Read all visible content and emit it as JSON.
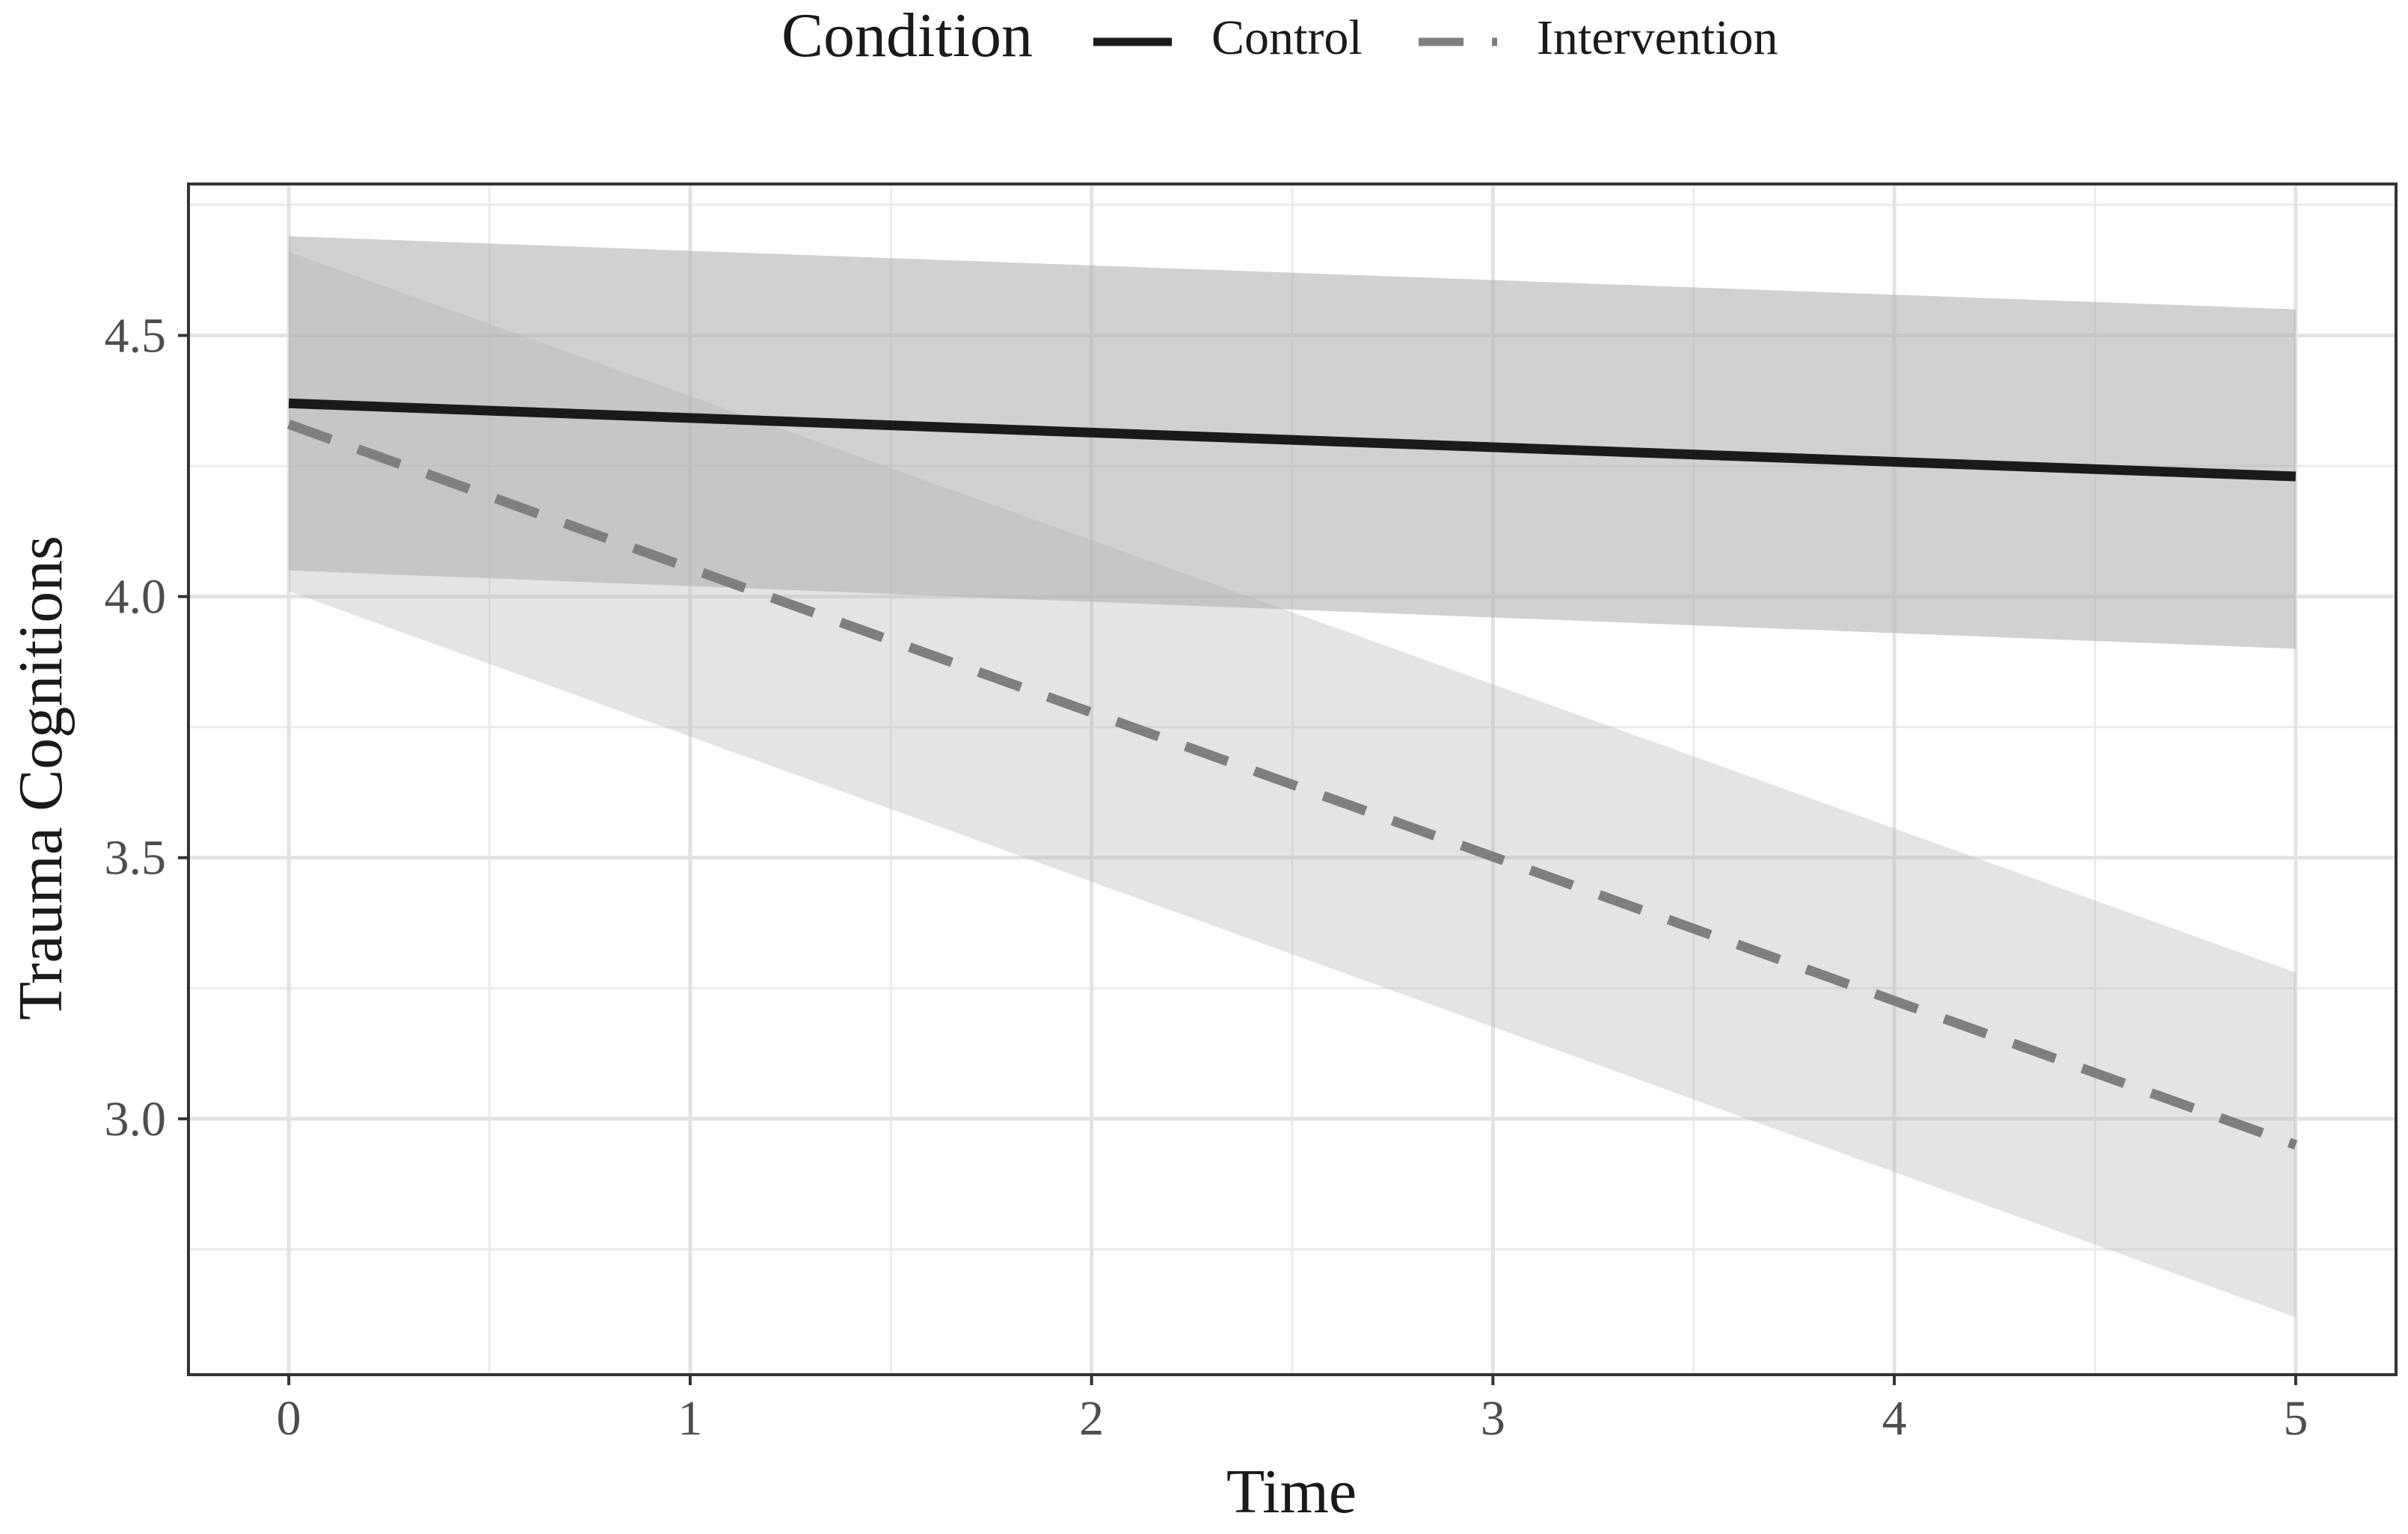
{
  "chart_data": {
    "type": "line",
    "title": "",
    "xlabel": "Time",
    "ylabel": "Trauma Cognitions",
    "xlim": [
      -0.25,
      5.25
    ],
    "ylim": [
      2.51,
      4.79
    ],
    "x_ticks": [
      0,
      1,
      2,
      3,
      4,
      5
    ],
    "x_tick_labels": [
      "0",
      "1",
      "2",
      "3",
      "4",
      "5"
    ],
    "y_ticks": [
      3.0,
      3.5,
      4.0,
      4.5
    ],
    "y_tick_labels": [
      "3.0",
      "3.5",
      "4.0",
      "4.5"
    ],
    "x_minor_ticks": [
      0.5,
      1.5,
      2.5,
      3.5,
      4.5
    ],
    "y_minor_ticks": [
      2.75,
      3.25,
      3.75,
      4.25,
      4.75
    ],
    "grid": true,
    "legend": {
      "title": "Condition",
      "position": "top",
      "entries": [
        "Control",
        "Intervention"
      ]
    },
    "series": [
      {
        "name": "Control",
        "line_style": "solid",
        "color": "#1a1a1a",
        "x": [
          0,
          5
        ],
        "values": [
          4.37,
          4.23
        ],
        "ci_lower": [
          4.05,
          3.9
        ],
        "ci_upper": [
          4.69,
          4.55
        ],
        "ribbon_color": "#b3b3b3",
        "ribbon_opacity": 0.6
      },
      {
        "name": "Intervention",
        "line_style": "dashed",
        "color": "#7f7f7f",
        "x": [
          0,
          5
        ],
        "values": [
          4.33,
          2.95
        ],
        "ci_lower": [
          4.01,
          2.62
        ],
        "ci_upper": [
          4.66,
          3.28
        ],
        "ribbon_color": "#b3b3b3",
        "ribbon_opacity": 0.35
      }
    ]
  }
}
